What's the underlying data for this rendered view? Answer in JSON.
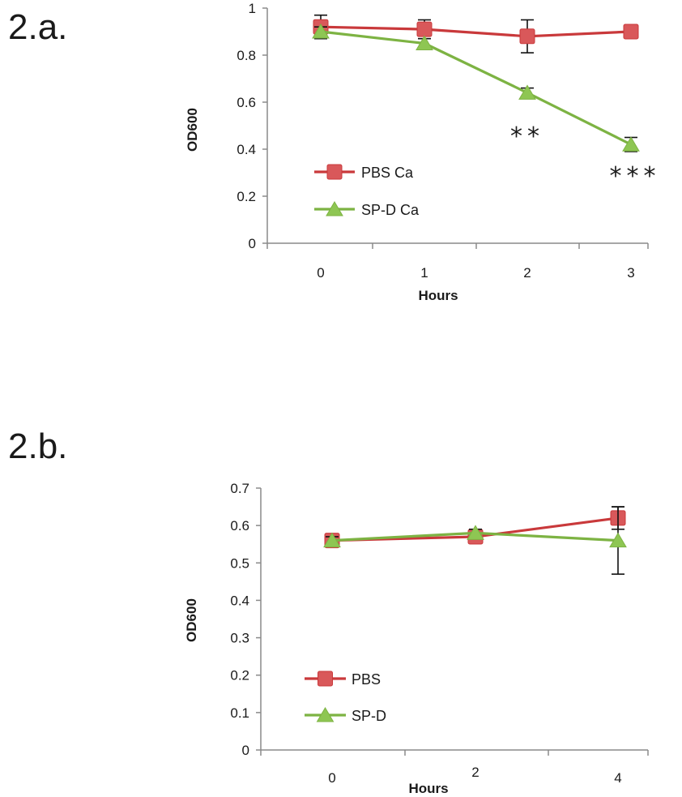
{
  "colors": {
    "pbs": "#c9393b",
    "pbs_marker": "#d9585a",
    "spd": "#7db343",
    "spd_marker": "#8ec653",
    "axis": "#8a8a8a",
    "text": "#1a1a1a"
  },
  "chart_data": [
    {
      "panel_label": "2.a.",
      "type": "line",
      "xlabel": "Hours",
      "ylabel": "OD600",
      "x": [
        0,
        1,
        2,
        3
      ],
      "x_tick_labels": [
        "0",
        "1",
        "2",
        "3"
      ],
      "ylim": [
        0,
        1
      ],
      "y_ticks": [
        0,
        0.2,
        0.4,
        0.6,
        0.8,
        1
      ],
      "y_tick_labels": [
        "0",
        "0.2",
        "0.4",
        "0.6",
        "0.8",
        "1"
      ],
      "legend_position": "lower-left",
      "grid": false,
      "series": [
        {
          "name": "PBS Ca",
          "marker": "square",
          "values": [
            0.92,
            0.91,
            0.88,
            0.9
          ],
          "errors": [
            0.05,
            0.04,
            0.07,
            0.02
          ]
        },
        {
          "name": "SP-D Ca",
          "marker": "triangle",
          "values": [
            0.9,
            0.85,
            0.64,
            0.42
          ],
          "errors": [
            0.02,
            0.02,
            0.02,
            0.03
          ]
        }
      ],
      "annotations": [
        {
          "x": 2,
          "text": "**"
        },
        {
          "x": 3,
          "text": "***"
        }
      ]
    },
    {
      "panel_label": "2.b.",
      "type": "line",
      "xlabel": "Hours",
      "ylabel": "OD600",
      "x": [
        0,
        2,
        4
      ],
      "x_tick_labels": [
        "0",
        "2",
        "4"
      ],
      "ylim": [
        0,
        0.7
      ],
      "y_ticks": [
        0,
        0.1,
        0.2,
        0.3,
        0.4,
        0.5,
        0.6,
        0.7
      ],
      "y_tick_labels": [
        "0",
        "0.1",
        "0.2",
        "0.3",
        "0.4",
        "0.5",
        "0.6",
        "0.7"
      ],
      "legend_position": "lower-left",
      "grid": false,
      "series": [
        {
          "name": "PBS",
          "marker": "square",
          "values": [
            0.56,
            0.57,
            0.62
          ],
          "errors": [
            0.01,
            0.01,
            0.03
          ]
        },
        {
          "name": "SP-D",
          "marker": "triangle",
          "values": [
            0.56,
            0.58,
            0.56
          ],
          "errors": [
            0.01,
            0.01,
            0.09
          ]
        }
      ],
      "annotations": []
    }
  ]
}
